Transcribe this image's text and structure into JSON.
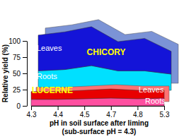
{
  "chart_data": {
    "type": "area",
    "stacked": true,
    "ylabel": "Relative yield (%)",
    "xlabel": [
      "pH in soil surface after liming",
      "(sub-surface pH = 4.3)"
    ],
    "categories": [
      "4.3",
      "4.4",
      "4.5",
      "4.7",
      "4.8",
      "5.3"
    ],
    "ylim": [
      0,
      100
    ],
    "yticks": [
      0,
      25,
      50,
      75,
      100
    ],
    "groups": [
      {
        "name": "CHICORY",
        "series": [
          {
            "name": "Roots",
            "color": "#00e0ff",
            "values": [
              30,
              32,
              38,
              30,
              30,
              25
            ]
          },
          {
            "name": "Leaves",
            "color": "#1414d8",
            "values": [
              55,
              58,
              60,
              45,
              50,
              35
            ]
          }
        ]
      },
      {
        "name": "LUCERNE",
        "series": [
          {
            "name": "Roots",
            "color": "#ff4fa0",
            "values": [
              10,
              10,
              11,
              12,
              11,
              12
            ]
          },
          {
            "name": "Leaves",
            "color": "#e80000",
            "values": [
              12,
              12,
              13,
              14,
              13,
              12
            ]
          }
        ]
      }
    ]
  }
}
